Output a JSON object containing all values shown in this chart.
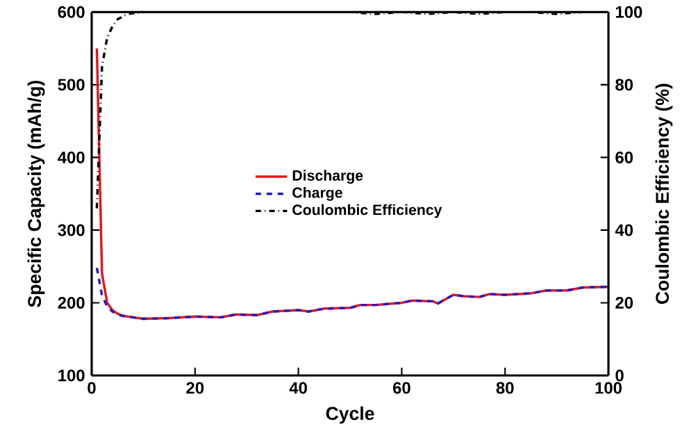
{
  "chart_data": {
    "type": "line",
    "xlabel": "Cycle",
    "ylabel": "Specific Capacity (mAh/g)",
    "y2label": "Coulombic Efficiency (%)",
    "xlim": [
      0,
      100
    ],
    "xticks": [
      0,
      20,
      40,
      60,
      80,
      100
    ],
    "ylim": [
      100,
      600
    ],
    "yticks": [
      100,
      200,
      300,
      400,
      500,
      600
    ],
    "y2lim": [
      0,
      100
    ],
    "y2ticks": [
      0,
      20,
      40,
      60,
      80,
      100
    ],
    "legend": "center",
    "marker": "none",
    "series": [
      {
        "name": "Discharge",
        "color": "#e8141c",
        "line_style": "solid",
        "axis": "y",
        "x": [
          1,
          2,
          3,
          4,
          5,
          6,
          8,
          10,
          15,
          20,
          25,
          28,
          32,
          35,
          40,
          42,
          45,
          50,
          52,
          55,
          60,
          62,
          66,
          67,
          70,
          72,
          75,
          77,
          80,
          85,
          88,
          92,
          95,
          100
        ],
        "values": [
          550,
          240,
          200,
          190,
          185,
          182,
          180,
          178,
          179,
          181,
          180,
          184,
          183,
          188,
          190,
          188,
          192,
          193,
          197,
          197,
          200,
          203,
          202,
          199,
          211,
          209,
          208,
          212,
          211,
          213,
          217,
          217,
          221,
          222
        ]
      },
      {
        "name": "Charge",
        "color": "#1c1ccc",
        "line_style": "dashed",
        "axis": "y",
        "x": [
          1,
          2,
          3,
          4,
          5,
          6,
          8,
          10,
          15,
          20,
          25,
          28,
          32,
          35,
          40,
          42,
          45,
          50,
          52,
          55,
          60,
          62,
          66,
          67,
          70,
          72,
          75,
          77,
          80,
          85,
          88,
          92,
          95,
          100
        ],
        "values": [
          248,
          210,
          195,
          188,
          184,
          182,
          180,
          178,
          179,
          181,
          180,
          184,
          183,
          188,
          190,
          188,
          192,
          193,
          197,
          197,
          200,
          203,
          202,
          199,
          211,
          209,
          208,
          212,
          211,
          213,
          217,
          217,
          221,
          222
        ]
      },
      {
        "name": "Coulombic Efficiency",
        "color": "#000000",
        "line_style": "dashdotted",
        "axis": "y2",
        "x": [
          1,
          2,
          3,
          4,
          5,
          7,
          10,
          20,
          30,
          40,
          50,
          55,
          60,
          65,
          70,
          75,
          80,
          85,
          90,
          95,
          100
        ],
        "values": [
          46,
          85,
          93,
          96,
          98,
          99.5,
          100,
          100,
          100,
          100,
          100,
          99.5,
          100,
          99.5,
          100,
          99.5,
          100,
          100,
          99.5,
          100,
          100
        ]
      }
    ]
  }
}
